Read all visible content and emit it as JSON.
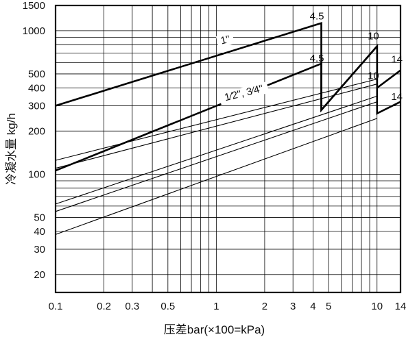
{
  "chart_data": {
    "type": "line",
    "title": "",
    "xlabel": "压差bar(×100=kPa)",
    "ylabel": "冷凝水量 kg/h",
    "x_scale": "log",
    "y_scale": "log",
    "xlim": [
      0.1,
      14
    ],
    "ylim": [
      15,
      1500
    ],
    "grid": true,
    "legend": "none",
    "x_ticks": [
      0.1,
      0.2,
      0.3,
      0.5,
      1,
      2,
      3,
      4,
      5,
      10,
      14
    ],
    "x_tick_labels": [
      "0.1",
      "0.2",
      "0.3",
      "0.5",
      "1",
      "2",
      "3",
      "4",
      "5",
      "10",
      "14"
    ],
    "y_ticks": [
      20,
      30,
      40,
      50,
      100,
      200,
      300,
      400,
      500,
      1000,
      1500
    ],
    "y_tick_labels": [
      "20",
      "30",
      "40",
      "50",
      "100",
      "200",
      "300",
      "400",
      "500",
      "1000",
      "1500"
    ],
    "series": [
      {
        "name": "1\"",
        "style": "bold",
        "x": [
          0.1,
          4.5,
          4.5,
          10,
          10,
          14
        ],
        "y": [
          300,
          1130,
          280,
          780,
          400,
          530
        ]
      },
      {
        "name": "1/2\", 3/4\"",
        "style": "bold",
        "x": [
          0.1,
          4.5,
          4.5,
          10,
          10,
          14
        ],
        "y": [
          106,
          590,
          280,
          780,
          265,
          320
        ]
      },
      {
        "name": "",
        "style": "thin",
        "x": [
          0.1,
          10
        ],
        "y": [
          125,
          460
        ]
      },
      {
        "name": "",
        "style": "thin",
        "x": [
          0.1,
          10
        ],
        "y": [
          110,
          425
        ]
      },
      {
        "name": "",
        "style": "thin",
        "x": [
          0.1,
          10
        ],
        "y": [
          62,
          350
        ]
      },
      {
        "name": "",
        "style": "thin",
        "x": [
          0.1,
          10
        ],
        "y": [
          55,
          320
        ]
      },
      {
        "name": "",
        "style": "thin",
        "x": [
          0.1,
          10
        ],
        "y": [
          38,
          245
        ]
      }
    ],
    "annotations": [
      {
        "text": "4.5",
        "x": 4.5,
        "y": 1200
      },
      {
        "text": "10",
        "x": 10,
        "y": 870
      },
      {
        "text": "14",
        "x": 14,
        "y": 600
      },
      {
        "text": "4.5",
        "x": 4.5,
        "y": 610
      },
      {
        "text": "10",
        "x": 10,
        "y": 460
      },
      {
        "text": "14",
        "x": 14,
        "y": 330
      },
      {
        "text": "1\"",
        "x": 1.15,
        "y": 820
      },
      {
        "text": "1⁄2\", 3⁄4\"",
        "x": 1.5,
        "y": 350
      }
    ]
  }
}
